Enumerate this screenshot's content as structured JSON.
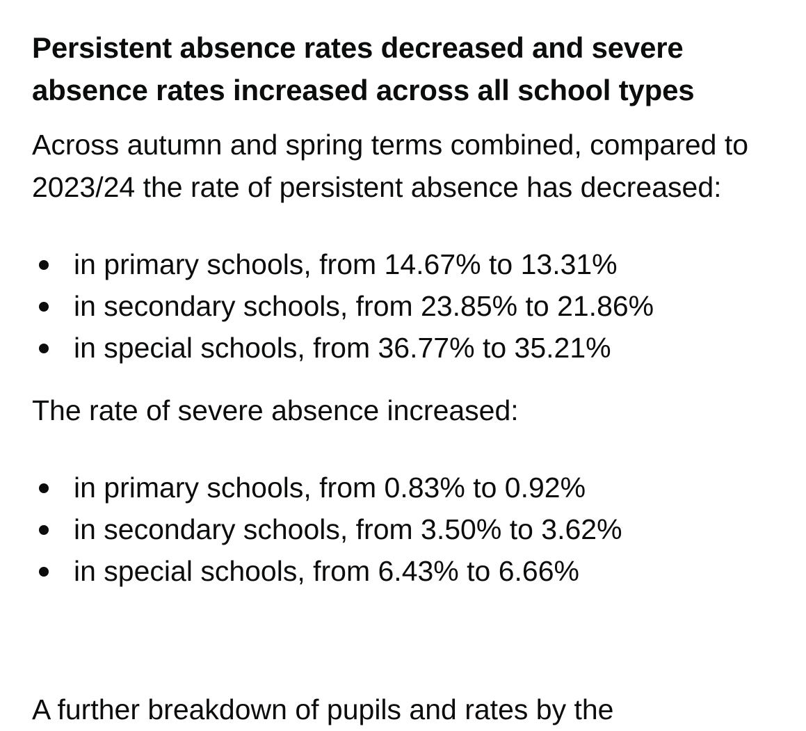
{
  "heading": "Persistent absence rates decreased and severe absence rates increased across all school types",
  "persistent_intro": "Across autumn and spring terms combined, compared to 2023/24 the rate of persistent absence has decreased:",
  "persistent_items": [
    "in primary schools, from 14.67% to 13.31%",
    "in secondary schools, from 23.85% to 21.86%",
    "in special schools, from 36.77% to 35.21%"
  ],
  "severe_intro": "The rate of severe absence increased:",
  "severe_items": [
    "in primary schools, from 0.83% to 0.92%",
    "in secondary schools, from 3.50% to 3.62%",
    "in special schools, from 6.43% to 6.66%"
  ],
  "cutoff_text": "A further breakdown of pupils and rates by the"
}
